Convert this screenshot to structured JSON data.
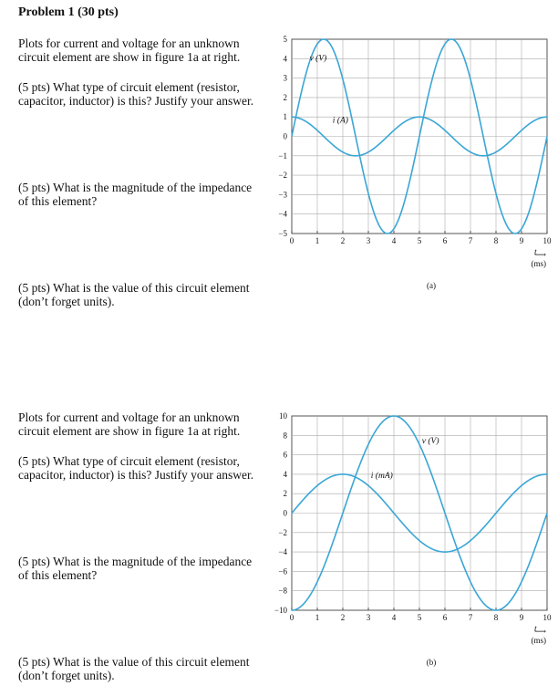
{
  "title": "Problem 1 (30 pts)",
  "part_a": {
    "intro": "Plots for current and voltage for an unknown circuit element are show in figure 1a at right.",
    "q1": "(5 pts) What type of circuit element (resistor, capacitor, inductor) is this? Justify your answer.",
    "q2": "(5 pts) What is the magnitude of the impedance of this element?",
    "q3": "(5 pts) What is the value of this circuit element (don’t forget units)."
  },
  "part_b": {
    "intro": "Plots for current and voltage for an unknown circuit element are show in figure 1a at right.",
    "q1": "(5 pts) What type of circuit element (resistor, capacitor, inductor) is this? Justify your answer.",
    "q2": "(5 pts) What is the magnitude of the impedance of this element?",
    "q3": "(5 pts) What is the value of this circuit element (don’t forget units)."
  },
  "chart_data": [
    {
      "type": "line",
      "caption": "(a)",
      "x_tick_labels": [
        "0",
        "1",
        "2",
        "3",
        "4",
        "5",
        "6",
        "7",
        "8",
        "9",
        "10"
      ],
      "y_tick_labels": [
        "5",
        "4",
        "3",
        "2",
        "1",
        "0",
        "−1",
        "−2",
        "−3",
        "−4",
        "−5"
      ],
      "xlabel": "t",
      "xunit": "(ms)",
      "xlim": [
        0,
        10
      ],
      "ylim": [
        -5,
        5
      ],
      "color": "#3aa6d6",
      "series": [
        {
          "name": "v (V)",
          "label": "v (V)",
          "amplitude": 5,
          "period_ms": 5,
          "peak_at_ms": 1.25
        },
        {
          "name": "i (A)",
          "label": "i (A)",
          "amplitude": 1,
          "period_ms": 5,
          "peak_at_ms": 0
        }
      ]
    },
    {
      "type": "line",
      "caption": "(b)",
      "x_tick_labels": [
        "0",
        "1",
        "2",
        "3",
        "4",
        "5",
        "6",
        "7",
        "8",
        "9",
        "10"
      ],
      "y_tick_labels": [
        "10",
        "8",
        "6",
        "4",
        "2",
        "0",
        "−2",
        "−4",
        "−6",
        "−8",
        "−10"
      ],
      "xlabel": "t",
      "xunit": "(ms)",
      "xlim": [
        0,
        10
      ],
      "ylim": [
        -10,
        10
      ],
      "color": "#3aa6d6",
      "series": [
        {
          "name": "v (V)",
          "label": "v (V)",
          "amplitude": 10,
          "period_ms": 8,
          "peak_at_ms": 4
        },
        {
          "name": "i (mA)",
          "label": "i (mA)",
          "amplitude": 4,
          "period_ms": 8,
          "peak_at_ms": 2
        }
      ]
    }
  ]
}
